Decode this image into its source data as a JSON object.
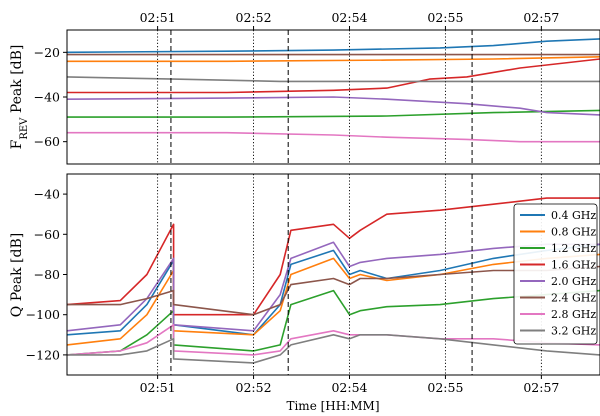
{
  "chart_data": [
    {
      "type": "line",
      "panel": "top",
      "ylabel": "F",
      "ylabel_sub": "REV",
      "ylabel_rest": " Peak [dB]",
      "xlim": [
        0,
        1
      ],
      "ylim": [
        -70,
        -10
      ],
      "yticks": [
        -20,
        -40,
        -60
      ],
      "xtick_positions_top": [
        0.17,
        0.35,
        0.53,
        0.71,
        0.89
      ],
      "xtick_labels_top": [
        "02:51",
        "02:52",
        "02:54",
        "02:55",
        "02:57"
      ],
      "series": [
        {
          "name": "0.4 GHz",
          "color": "#1f77b4",
          "x": [
            0,
            0.3,
            0.5,
            0.7,
            0.8,
            0.9,
            1.0
          ],
          "y": [
            -20,
            -19.5,
            -19,
            -18,
            -17,
            -15,
            -14
          ]
        },
        {
          "name": "0.8 GHz",
          "color": "#ff7f0e",
          "x": [
            0,
            0.3,
            0.6,
            0.8,
            1.0
          ],
          "y": [
            -24,
            -24,
            -23.5,
            -23,
            -22
          ]
        },
        {
          "name": "1.2 GHz",
          "color": "#2ca02c",
          "x": [
            0,
            0.3,
            0.6,
            0.8,
            1.0
          ],
          "y": [
            -49,
            -49,
            -48.5,
            -47,
            -46
          ]
        },
        {
          "name": "1.6 GHz",
          "color": "#d62728",
          "x": [
            0,
            0.3,
            0.5,
            0.6,
            0.68,
            0.75,
            0.85,
            1.0
          ],
          "y": [
            -38,
            -38,
            -37,
            -36,
            -32,
            -31,
            -27,
            -23
          ]
        },
        {
          "name": "2.0 GHz",
          "color": "#9467bd",
          "x": [
            0,
            0.3,
            0.5,
            0.6,
            0.75,
            0.85,
            0.9,
            1.0
          ],
          "y": [
            -41,
            -40.5,
            -40,
            -41,
            -43,
            -45,
            -47,
            -48
          ]
        },
        {
          "name": "2.4 GHz",
          "color": "#8c564b",
          "x": [
            0,
            0.3,
            0.6,
            0.8,
            1.0
          ],
          "y": [
            -21,
            -21,
            -21,
            -21,
            -21
          ]
        },
        {
          "name": "2.8 GHz",
          "color": "#e377c2",
          "x": [
            0,
            0.3,
            0.5,
            0.6,
            0.75,
            0.85,
            1.0
          ],
          "y": [
            -56,
            -56,
            -57,
            -58,
            -59,
            -60,
            -60
          ]
        },
        {
          "name": "3.2 GHz",
          "color": "#7f7f7f",
          "x": [
            0,
            0.2,
            0.4,
            0.6,
            0.8,
            1.0
          ],
          "y": [
            -31,
            -32,
            -33,
            -33,
            -33,
            -33
          ]
        }
      ],
      "vlines_dotted": [
        0.17,
        0.35,
        0.53,
        0.71,
        0.89
      ],
      "vlines_dashed": [
        0.195,
        0.415,
        0.76
      ]
    },
    {
      "type": "line",
      "panel": "bottom",
      "xlabel": "Time [HH:MM]",
      "ylabel": "Q Peak [dB]",
      "xlim": [
        0,
        1
      ],
      "ylim": [
        -130,
        -30
      ],
      "yticks": [
        -40,
        -60,
        -80,
        -100,
        -120
      ],
      "xtick_positions": [
        0.17,
        0.35,
        0.53,
        0.71,
        0.89
      ],
      "xtick_labels": [
        "02:51",
        "02:52",
        "02:54",
        "02:55",
        "02:57"
      ],
      "legend_position": "center-right",
      "series": [
        {
          "name": "0.4 GHz",
          "color": "#1f77b4",
          "x": [
            0,
            0.1,
            0.15,
            0.2,
            0.2,
            0.35,
            0.4,
            0.42,
            0.5,
            0.53,
            0.55,
            0.6,
            0.7,
            0.8,
            0.9,
            1.0
          ],
          "y": [
            -110,
            -108,
            -95,
            -73,
            -105,
            -110,
            -95,
            -75,
            -68,
            -80,
            -78,
            -82,
            -78,
            -72,
            -68,
            -65
          ]
        },
        {
          "name": "0.8 GHz",
          "color": "#ff7f0e",
          "x": [
            0,
            0.1,
            0.15,
            0.2,
            0.2,
            0.35,
            0.4,
            0.42,
            0.5,
            0.53,
            0.55,
            0.6,
            0.7,
            0.8,
            0.9,
            1.0
          ],
          "y": [
            -115,
            -112,
            -100,
            -78,
            -108,
            -110,
            -98,
            -80,
            -72,
            -82,
            -80,
            -83,
            -80,
            -75,
            -72,
            -70
          ]
        },
        {
          "name": "1.2 GHz",
          "color": "#2ca02c",
          "x": [
            0,
            0.1,
            0.15,
            0.2,
            0.2,
            0.35,
            0.4,
            0.42,
            0.5,
            0.53,
            0.55,
            0.6,
            0.7,
            0.8,
            0.9,
            1.0
          ],
          "y": [
            -120,
            -118,
            -110,
            -98,
            -115,
            -118,
            -115,
            -95,
            -88,
            -100,
            -98,
            -96,
            -95,
            -92,
            -90,
            -88
          ]
        },
        {
          "name": "1.6 GHz",
          "color": "#d62728",
          "x": [
            0,
            0.1,
            0.15,
            0.2,
            0.2,
            0.35,
            0.4,
            0.42,
            0.5,
            0.53,
            0.55,
            0.6,
            0.7,
            0.8,
            0.9,
            1.0
          ],
          "y": [
            -95,
            -93,
            -80,
            -55,
            -100,
            -100,
            -80,
            -58,
            -55,
            -62,
            -58,
            -50,
            -48,
            -45,
            -42,
            -42
          ]
        },
        {
          "name": "2.0 GHz",
          "color": "#9467bd",
          "x": [
            0,
            0.1,
            0.15,
            0.2,
            0.2,
            0.35,
            0.4,
            0.42,
            0.5,
            0.53,
            0.55,
            0.6,
            0.7,
            0.8,
            0.9,
            1.0
          ],
          "y": [
            -108,
            -105,
            -92,
            -72,
            -105,
            -108,
            -90,
            -72,
            -64,
            -76,
            -74,
            -72,
            -70,
            -67,
            -65,
            -65
          ]
        },
        {
          "name": "2.4 GHz",
          "color": "#8c564b",
          "x": [
            0,
            0.1,
            0.15,
            0.2,
            0.2,
            0.35,
            0.4,
            0.42,
            0.5,
            0.53,
            0.55,
            0.6,
            0.7,
            0.8,
            0.9,
            1.0
          ],
          "y": [
            -95,
            -95,
            -92,
            -88,
            -95,
            -100,
            -95,
            -85,
            -82,
            -85,
            -82,
            -82,
            -80,
            -78,
            -78,
            -76
          ]
        },
        {
          "name": "2.8 GHz",
          "color": "#e377c2",
          "x": [
            0,
            0.1,
            0.15,
            0.2,
            0.2,
            0.35,
            0.4,
            0.42,
            0.5,
            0.53,
            0.55,
            0.6,
            0.7,
            0.8,
            0.9,
            1.0
          ],
          "y": [
            -120,
            -118,
            -114,
            -105,
            -118,
            -120,
            -118,
            -112,
            -108,
            -110,
            -110,
            -110,
            -112,
            -112,
            -114,
            -115
          ]
        },
        {
          "name": "3.2 GHz",
          "color": "#7f7f7f",
          "x": [
            0,
            0.1,
            0.15,
            0.2,
            0.2,
            0.35,
            0.4,
            0.42,
            0.5,
            0.53,
            0.55,
            0.6,
            0.7,
            0.8,
            0.9,
            1.0
          ],
          "y": [
            -120,
            -120,
            -118,
            -112,
            -122,
            -124,
            -120,
            -115,
            -110,
            -112,
            -110,
            -110,
            -112,
            -115,
            -118,
            -120
          ]
        }
      ],
      "vlines_dotted": [
        0.17,
        0.35,
        0.53,
        0.71,
        0.89
      ],
      "vlines_dashed": [
        0.195,
        0.415,
        0.76
      ]
    }
  ]
}
